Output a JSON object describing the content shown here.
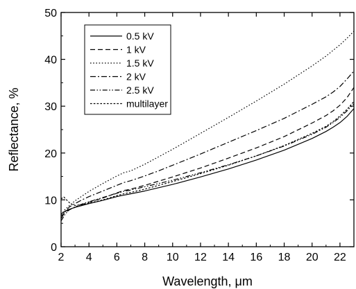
{
  "chart_data": {
    "type": "line",
    "title": "",
    "xlabel": "Wavelength, μm",
    "ylabel": "Reflectance, %",
    "xlim": [
      2,
      23
    ],
    "ylim": [
      0,
      50
    ],
    "x_ticks": [
      2,
      4,
      6,
      8,
      10,
      12,
      14,
      16,
      18,
      20,
      22
    ],
    "y_ticks": [
      0,
      10,
      20,
      30,
      40,
      50
    ],
    "grid": false,
    "legend_position": "top-left",
    "line_color": "#000000",
    "series": [
      {
        "name": "0.5 kV",
        "dash": "solid",
        "x": [
          2.0,
          2.3,
          2.6,
          3,
          3.5,
          4,
          5,
          6,
          6.5,
          7,
          8,
          9,
          10,
          12,
          14,
          16,
          18,
          20,
          21,
          21.5,
          22,
          22.5,
          23
        ],
        "y": [
          7.0,
          7.6,
          8.0,
          8.4,
          8.8,
          9.2,
          9.9,
          10.7,
          11.0,
          11.3,
          11.9,
          12.6,
          13.3,
          14.9,
          16.6,
          18.5,
          20.6,
          23.1,
          24.6,
          25.5,
          26.5,
          27.8,
          29.5
        ]
      },
      {
        "name": "1 kV",
        "dash": "dashed",
        "x": [
          2.0,
          2.3,
          2.6,
          3,
          3.5,
          4,
          5,
          6,
          6.5,
          7,
          8,
          9,
          10,
          12,
          14,
          16,
          18,
          20,
          21,
          21.5,
          22,
          22.5,
          23
        ],
        "y": [
          6.5,
          7.4,
          7.9,
          8.4,
          9.0,
          9.5,
          10.4,
          11.5,
          12.0,
          12.3,
          13.1,
          14.0,
          14.9,
          16.8,
          18.9,
          21.1,
          23.5,
          26.4,
          28.0,
          29.0,
          30.2,
          31.8,
          34.0
        ]
      },
      {
        "name": "1.5 kV",
        "dash": "dotted",
        "x": [
          2.0,
          2.3,
          2.6,
          3,
          3.5,
          4,
          5,
          6,
          6.5,
          7,
          8,
          9,
          10,
          12,
          14,
          16,
          18,
          20,
          21,
          21.5,
          22,
          22.5,
          23
        ],
        "y": [
          6.8,
          8.0,
          8.8,
          9.8,
          10.8,
          11.8,
          13.5,
          15.1,
          15.8,
          16.2,
          17.6,
          19.2,
          20.8,
          24.2,
          27.6,
          31.1,
          34.7,
          38.6,
          40.7,
          41.9,
          43.1,
          44.5,
          46.0
        ]
      },
      {
        "name": "2 kV",
        "dash": "dash-dot",
        "x": [
          2.0,
          2.3,
          2.6,
          3,
          3.5,
          4,
          5,
          6,
          6.5,
          7,
          8,
          9,
          10,
          12,
          14,
          16,
          18,
          20,
          21,
          21.5,
          22,
          22.5,
          23
        ],
        "y": [
          6.0,
          7.5,
          8.5,
          9.2,
          10.0,
          10.7,
          11.9,
          13.1,
          13.7,
          14.1,
          15.1,
          16.2,
          17.4,
          19.8,
          22.3,
          24.8,
          27.4,
          30.4,
          32.0,
          33.0,
          34.2,
          35.8,
          37.5
        ]
      },
      {
        "name": "2.5 kV",
        "dash": "dash-dot-dot",
        "x": [
          2.0,
          2.3,
          2.6,
          3,
          3.5,
          4,
          5,
          6,
          6.5,
          7,
          8,
          9,
          10,
          12,
          14,
          16,
          18,
          20,
          21,
          21.5,
          22,
          22.5,
          23
        ],
        "y": [
          5.5,
          7.0,
          7.9,
          8.5,
          9.1,
          9.6,
          10.5,
          11.4,
          11.8,
          12.1,
          12.8,
          13.5,
          14.2,
          15.8,
          17.5,
          19.4,
          21.5,
          24.0,
          25.5,
          26.5,
          27.6,
          29.0,
          30.5
        ]
      },
      {
        "name": "multilayer",
        "dash": "short-dash",
        "x": [
          2.0,
          2.2,
          2.4,
          2.6,
          2.8,
          3,
          3.5,
          4,
          5,
          6,
          6.5,
          7,
          8,
          9,
          10,
          12,
          14,
          16,
          18,
          20,
          21,
          21.5,
          22,
          22.5,
          23
        ],
        "y": [
          10.2,
          10.6,
          10.0,
          9.4,
          9.0,
          8.8,
          9.0,
          9.3,
          10.0,
          10.9,
          11.3,
          11.6,
          12.3,
          13.1,
          13.9,
          15.6,
          17.4,
          19.4,
          21.6,
          24.2,
          25.7,
          26.7,
          27.9,
          29.3,
          31.0
        ]
      }
    ]
  }
}
